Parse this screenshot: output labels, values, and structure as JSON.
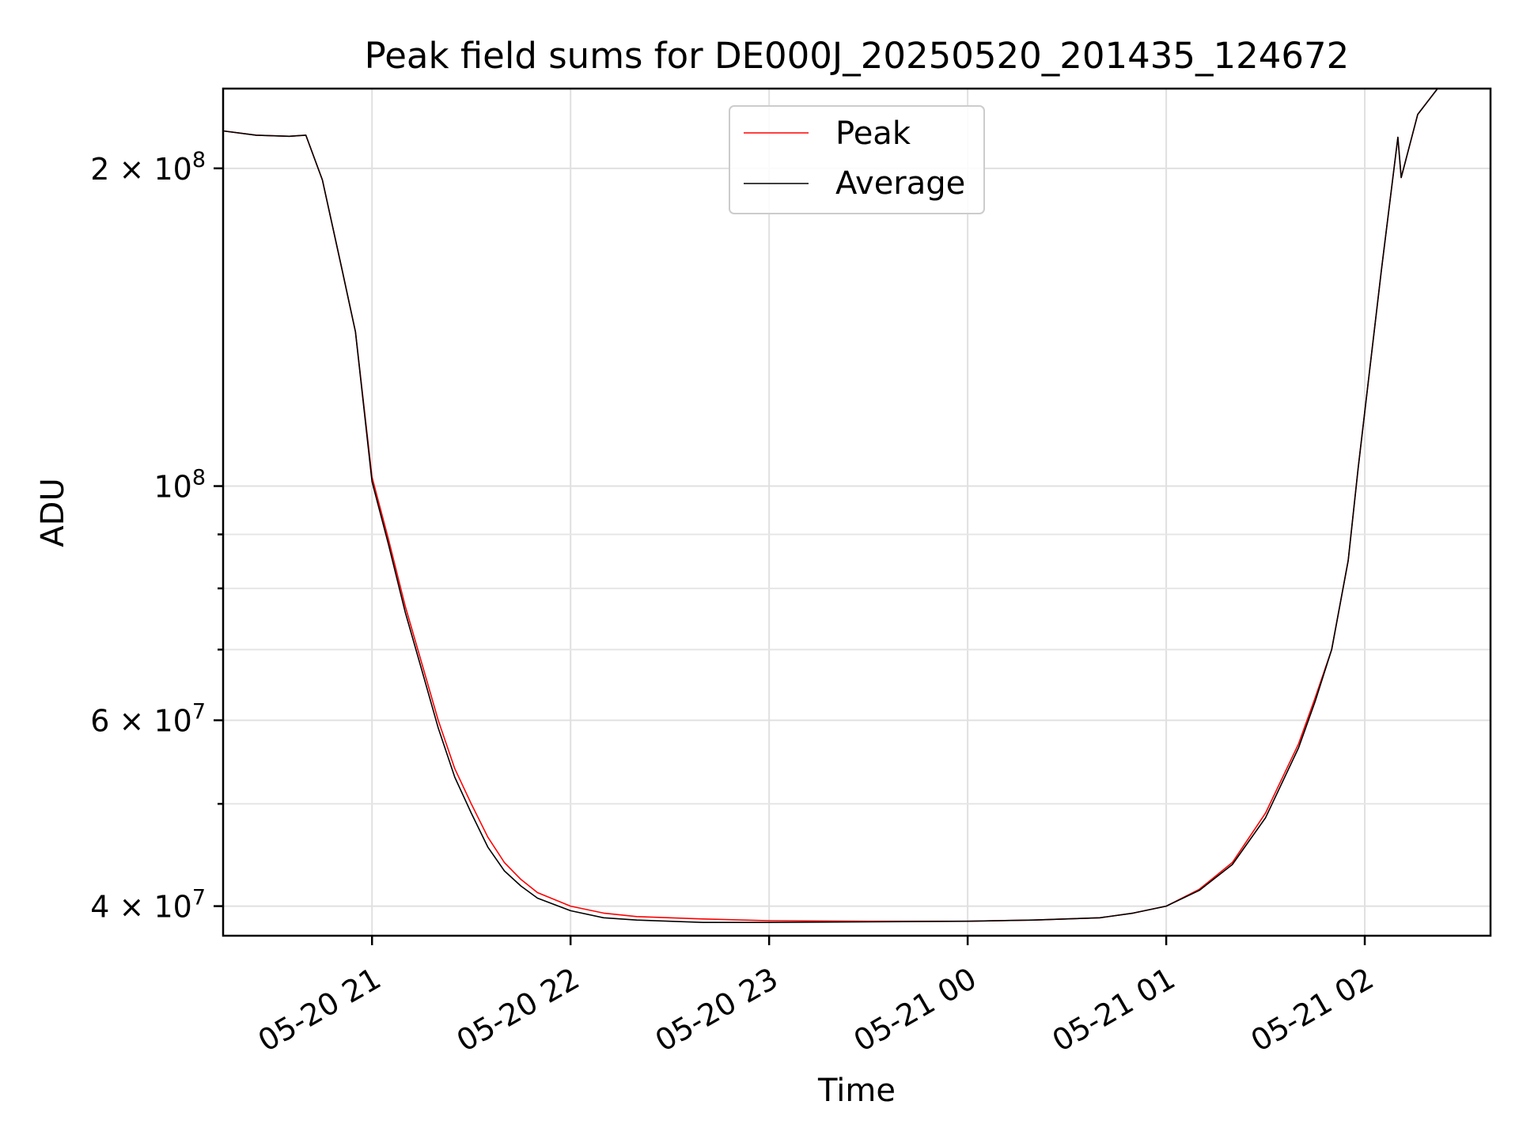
{
  "chart_data": {
    "type": "line",
    "title": "Peak field sums for DE000J_20250520_201435_124672",
    "xlabel": "Time",
    "ylabel": "ADU",
    "yscale": "log",
    "xlim": [
      "2025-05-20 20:15",
      "2025-05-21 02:38"
    ],
    "ylim": [
      37500000,
      238000000
    ],
    "grid": true,
    "legend_position": "top-center",
    "x_ticks": [
      {
        "t": "2025-05-20 21:00",
        "label": "05-20 21"
      },
      {
        "t": "2025-05-20 22:00",
        "label": "05-20 22"
      },
      {
        "t": "2025-05-20 23:00",
        "label": "05-20 23"
      },
      {
        "t": "2025-05-21 00:00",
        "label": "05-21 00"
      },
      {
        "t": "2025-05-21 01:00",
        "label": "05-21 01"
      },
      {
        "t": "2025-05-21 02:00",
        "label": "05-21 02"
      }
    ],
    "y_ticks": [
      {
        "value": 40000000,
        "base": "4 × 10",
        "exp": "7"
      },
      {
        "value": 60000000,
        "base": "6 × 10",
        "exp": "7"
      },
      {
        "value": 100000000,
        "base": "10",
        "exp": "8"
      },
      {
        "value": 200000000,
        "base": "2 × 10",
        "exp": "8"
      }
    ],
    "y_minor_ticks": [
      50000000,
      70000000,
      80000000,
      90000000
    ],
    "series": [
      {
        "name": "Peak",
        "color": "#ff0000",
        "points": [
          [
            "2025-05-20 20:15",
            217000000
          ],
          [
            "2025-05-20 20:25",
            215000000
          ],
          [
            "2025-05-20 20:35",
            214500000
          ],
          [
            "2025-05-20 20:40",
            215000000
          ],
          [
            "2025-05-20 20:45",
            195000000
          ],
          [
            "2025-05-20 20:51",
            160000000
          ],
          [
            "2025-05-20 20:55",
            140000000
          ],
          [
            "2025-05-20 21:00",
            102000000
          ],
          [
            "2025-05-20 21:05",
            89000000
          ],
          [
            "2025-05-20 21:10",
            77000000
          ],
          [
            "2025-05-20 21:15",
            68000000
          ],
          [
            "2025-05-20 21:20",
            60000000
          ],
          [
            "2025-05-20 21:25",
            54000000
          ],
          [
            "2025-05-20 21:30",
            50000000
          ],
          [
            "2025-05-20 21:35",
            46500000
          ],
          [
            "2025-05-20 21:40",
            44000000
          ],
          [
            "2025-05-20 21:45",
            42400000
          ],
          [
            "2025-05-20 21:50",
            41200000
          ],
          [
            "2025-05-20 22:00",
            40000000
          ],
          [
            "2025-05-20 22:10",
            39400000
          ],
          [
            "2025-05-20 22:20",
            39100000
          ],
          [
            "2025-05-20 22:40",
            38900000
          ],
          [
            "2025-05-20 23:00",
            38750000
          ],
          [
            "2025-05-20 23:30",
            38700000
          ],
          [
            "2025-05-21 00:00",
            38700000
          ],
          [
            "2025-05-21 00:20",
            38800000
          ],
          [
            "2025-05-21 00:40",
            39000000
          ],
          [
            "2025-05-21 00:50",
            39400000
          ],
          [
            "2025-05-21 01:00",
            40000000
          ],
          [
            "2025-05-21 01:10",
            41500000
          ],
          [
            "2025-05-21 01:20",
            44000000
          ],
          [
            "2025-05-21 01:30",
            49000000
          ],
          [
            "2025-05-21 01:40",
            57000000
          ],
          [
            "2025-05-21 01:45",
            63000000
          ],
          [
            "2025-05-21 01:50",
            70000000
          ],
          [
            "2025-05-21 01:55",
            85000000
          ],
          [
            "2025-05-21 01:58",
            104000000
          ],
          [
            "2025-05-21 02:01",
            125000000
          ],
          [
            "2025-05-21 02:05",
            160000000
          ],
          [
            "2025-05-21 02:10",
            214000000
          ],
          [
            "2025-05-21 02:11",
            196000000
          ],
          [
            "2025-05-21 02:16",
            225000000
          ],
          [
            "2025-05-21 02:22",
            238000000
          ]
        ]
      },
      {
        "name": "Average",
        "color": "#000000",
        "points": [
          [
            "2025-05-20 20:15",
            217000000
          ],
          [
            "2025-05-20 20:25",
            215000000
          ],
          [
            "2025-05-20 20:35",
            214500000
          ],
          [
            "2025-05-20 20:40",
            215000000
          ],
          [
            "2025-05-20 20:45",
            195000000
          ],
          [
            "2025-05-20 20:51",
            160000000
          ],
          [
            "2025-05-20 20:55",
            140000000
          ],
          [
            "2025-05-20 21:00",
            101000000
          ],
          [
            "2025-05-20 21:05",
            88000000
          ],
          [
            "2025-05-20 21:10",
            76000000
          ],
          [
            "2025-05-20 21:15",
            67000000
          ],
          [
            "2025-05-20 21:20",
            59000000
          ],
          [
            "2025-05-20 21:25",
            53000000
          ],
          [
            "2025-05-20 21:30",
            49000000
          ],
          [
            "2025-05-20 21:35",
            45500000
          ],
          [
            "2025-05-20 21:40",
            43200000
          ],
          [
            "2025-05-20 21:45",
            41800000
          ],
          [
            "2025-05-20 21:50",
            40700000
          ],
          [
            "2025-05-20 22:00",
            39600000
          ],
          [
            "2025-05-20 22:10",
            39000000
          ],
          [
            "2025-05-20 22:20",
            38800000
          ],
          [
            "2025-05-20 22:40",
            38600000
          ],
          [
            "2025-05-20 23:00",
            38600000
          ],
          [
            "2025-05-20 23:30",
            38650000
          ],
          [
            "2025-05-21 00:00",
            38700000
          ],
          [
            "2025-05-21 00:20",
            38800000
          ],
          [
            "2025-05-21 00:40",
            39000000
          ],
          [
            "2025-05-21 00:50",
            39400000
          ],
          [
            "2025-05-21 01:00",
            40000000
          ],
          [
            "2025-05-21 01:10",
            41400000
          ],
          [
            "2025-05-21 01:20",
            43800000
          ],
          [
            "2025-05-21 01:30",
            48500000
          ],
          [
            "2025-05-21 01:40",
            56500000
          ],
          [
            "2025-05-21 01:45",
            62500000
          ],
          [
            "2025-05-21 01:50",
            70000000
          ],
          [
            "2025-05-21 01:55",
            85000000
          ],
          [
            "2025-05-21 01:58",
            104000000
          ],
          [
            "2025-05-21 02:01",
            125000000
          ],
          [
            "2025-05-21 02:05",
            160000000
          ],
          [
            "2025-05-21 02:10",
            214000000
          ],
          [
            "2025-05-21 02:11",
            196000000
          ],
          [
            "2025-05-21 02:16",
            225000000
          ],
          [
            "2025-05-21 02:22",
            238000000
          ]
        ]
      }
    ]
  }
}
